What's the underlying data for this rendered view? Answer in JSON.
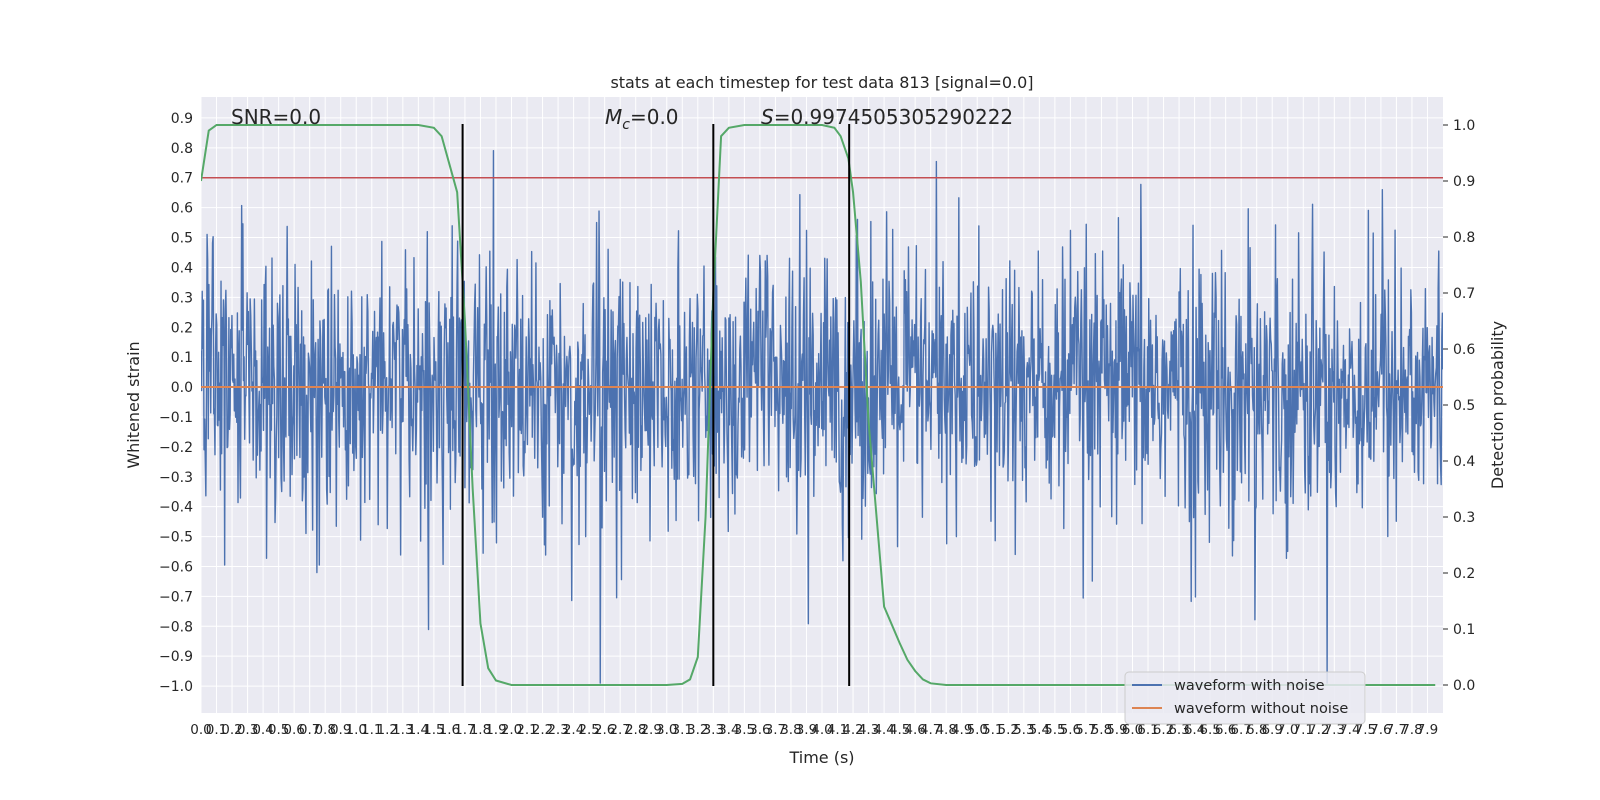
{
  "chart_data": {
    "type": "line",
    "title": "stats at each timestep for test data 813 [signal=0.0]",
    "xlabel": "Time (s)",
    "ylabel_left": "Whitened strain",
    "ylabel_right": "Detection probability",
    "xlim": [
      0.0,
      8.0
    ],
    "ylim_left": [
      -1.09,
      0.97
    ],
    "ylim_right": [
      -0.05,
      1.05
    ],
    "grid": true,
    "x_tick_labels": [
      "0.0",
      "0.1",
      "0.2",
      "0.3",
      "0.4",
      "0.5",
      "0.6",
      "0.7",
      "0.8",
      "0.9",
      "1.0",
      "1.1",
      "1.2",
      "1.3",
      "1.4",
      "1.5",
      "1.6",
      "1.7",
      "1.8",
      "1.9",
      "2.0",
      "2.1",
      "2.2",
      "2.3",
      "2.4",
      "2.5",
      "2.6",
      "2.7",
      "2.8",
      "2.9",
      "3.0",
      "3.1",
      "3.2",
      "3.3",
      "3.4",
      "3.5",
      "3.6",
      "3.7",
      "3.8",
      "3.9",
      "4.0",
      "4.1",
      "4.2",
      "4.3",
      "4.4",
      "4.5",
      "4.6",
      "4.7",
      "4.8",
      "4.9",
      "5.0",
      "5.1",
      "5.2",
      "5.3",
      "5.4",
      "5.5",
      "5.6",
      "5.7",
      "5.8",
      "5.9",
      "6.0",
      "6.1",
      "6.2",
      "6.3",
      "6.4",
      "6.5",
      "6.6",
      "6.7",
      "6.8",
      "6.9",
      "7.0",
      "7.1",
      "7.2",
      "7.3",
      "7.4",
      "7.5",
      "7.6",
      "7.7",
      "7.8",
      "7.9"
    ],
    "y_tick_labels_left": [
      "0.9",
      "0.8",
      "0.7",
      "0.6",
      "0.5",
      "0.4",
      "0.3",
      "0.2",
      "0.1",
      "0.0",
      "−0.1",
      "−0.2",
      "−0.3",
      "−0.4",
      "−0.5",
      "−0.6",
      "−0.7",
      "−0.8",
      "−0.9",
      "−1.0"
    ],
    "y_tick_values_left": [
      0.9,
      0.8,
      0.7,
      0.6,
      0.5,
      0.4,
      0.3,
      0.2,
      0.1,
      0.0,
      -0.1,
      -0.2,
      -0.3,
      -0.4,
      -0.5,
      -0.6,
      -0.7,
      -0.8,
      -0.9,
      -1.0
    ],
    "y_tick_labels_right": [
      "1.0",
      "0.9",
      "0.8",
      "0.7",
      "0.6",
      "0.5",
      "0.4",
      "0.3",
      "0.2",
      "0.1",
      "0.0"
    ],
    "y_tick_values_right": [
      1.0,
      0.9,
      0.8,
      0.7,
      0.6,
      0.5,
      0.4,
      0.3,
      0.2,
      0.1,
      0.0
    ],
    "threshold": {
      "value": 0.7,
      "axis": "left",
      "color": "#c44e52"
    },
    "vertical_lines": [
      1.685,
      3.3,
      4.175
    ],
    "annotations": {
      "snr": "SNR=0.0",
      "mc_symbol": "M",
      "mc_subscript": "c",
      "mc_value": "=0.0",
      "s_symbol": "S",
      "s_value": "=0.9974505305290222"
    },
    "series": [
      {
        "name": "waveform with noise",
        "color": "#4c72b0",
        "noise_envelope": {
          "mean": 0.0,
          "typical_amplitude": 0.3,
          "max": 0.88,
          "min": -0.99,
          "samples": 2048
        }
      },
      {
        "name": "waveform without noise",
        "color": "#dd8452",
        "constant_value": 0.0
      },
      {
        "name": "detection probability",
        "color": "#55a868",
        "axis": "right",
        "x": [
          0.0,
          0.05,
          0.1,
          0.2,
          0.4,
          0.8,
          1.2,
          1.4,
          1.5,
          1.55,
          1.6,
          1.65,
          1.7,
          1.75,
          1.8,
          1.85,
          1.9,
          2.0,
          2.1,
          2.5,
          3.0,
          3.1,
          3.15,
          3.2,
          3.25,
          3.3,
          3.35,
          3.4,
          3.5,
          3.6,
          3.8,
          4.0,
          4.08,
          4.12,
          4.17,
          4.2,
          4.25,
          4.3,
          4.4,
          4.5,
          4.55,
          4.6,
          4.65,
          4.7,
          4.8,
          5.0,
          6.0,
          7.0,
          7.95
        ],
        "y": [
          0.9,
          0.99,
          1.0,
          1.0,
          1.0,
          1.0,
          1.0,
          1.0,
          0.995,
          0.98,
          0.93,
          0.88,
          0.65,
          0.35,
          0.11,
          0.03,
          0.008,
          0.0,
          0.0,
          0.0,
          0.0,
          0.002,
          0.01,
          0.05,
          0.3,
          0.7,
          0.98,
          0.995,
          1.0,
          1.0,
          1.0,
          1.0,
          0.995,
          0.98,
          0.94,
          0.88,
          0.72,
          0.47,
          0.14,
          0.075,
          0.045,
          0.025,
          0.01,
          0.003,
          0.0,
          0.0,
          0.0,
          0.0,
          0.0
        ]
      }
    ],
    "legend": {
      "placement": "lower-right",
      "entries": [
        "waveform with noise",
        "waveform without noise"
      ]
    }
  }
}
